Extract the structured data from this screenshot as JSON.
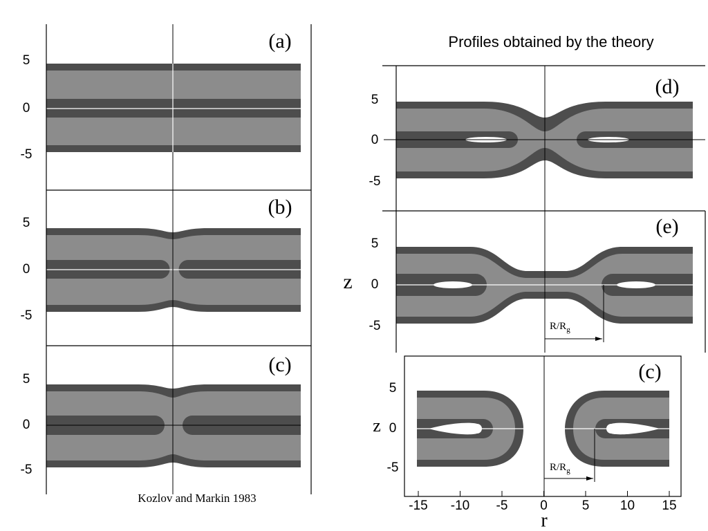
{
  "title": "Profiles obtained by the theory",
  "caption": "Kozlov and Markin 1983",
  "left_panels": [
    {
      "label": "(a)",
      "yticks": [
        "5",
        "0",
        "-5"
      ]
    },
    {
      "label": "(b)",
      "yticks": [
        "5",
        "0",
        "-5"
      ]
    },
    {
      "label": "(c)",
      "yticks": [
        "5",
        "0",
        "-5"
      ]
    }
  ],
  "right_panels": [
    {
      "label": "(d)",
      "yticks": [
        "5",
        "0",
        "-5"
      ]
    },
    {
      "label": "(e)",
      "yticks": [
        "5",
        "0",
        "-5"
      ],
      "z_label": "z",
      "radius_label": "R/R",
      "radius_sub": "g"
    },
    {
      "label": "(c)",
      "yticks": [
        "5",
        "0",
        "-5"
      ],
      "z_label": "z",
      "radius_label": "R/R",
      "radius_sub": "g"
    }
  ],
  "xticks": [
    "-15",
    "-10",
    "-5",
    "0",
    "5",
    "10",
    "15"
  ],
  "x_label": "r"
}
